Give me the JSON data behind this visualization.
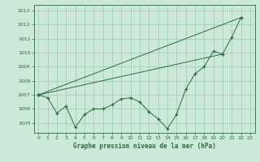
{
  "xlabel": "Graphe pression niveau de la mer (hPa)",
  "bg_color": "#cce8d8",
  "grid_color": "#99ccb3",
  "line_color": "#2d6b3c",
  "ylim": [
    1004.3,
    1013.4
  ],
  "xlim": [
    -0.5,
    23.5
  ],
  "yticks": [
    1005,
    1006,
    1007,
    1008,
    1009,
    1010,
    1011,
    1012,
    1013
  ],
  "xticks": [
    0,
    1,
    2,
    3,
    4,
    5,
    6,
    7,
    8,
    9,
    10,
    11,
    12,
    13,
    14,
    15,
    16,
    17,
    18,
    19,
    20,
    21,
    22,
    23
  ],
  "series1": [
    1007.0,
    1006.8,
    1005.7,
    1006.2,
    1004.7,
    1005.6,
    1006.0,
    1006.0,
    1006.3,
    1006.7,
    1006.8,
    1006.5,
    1005.8,
    1005.3,
    1004.6,
    1005.6,
    1007.4,
    1008.5,
    1009.0,
    1010.1,
    1009.9,
    1011.1,
    1012.5
  ],
  "series2_x": [
    0,
    22
  ],
  "series2_y": [
    1007.0,
    1012.5
  ],
  "series3_x": [
    0,
    20
  ],
  "series3_y": [
    1007.0,
    1009.9
  ]
}
